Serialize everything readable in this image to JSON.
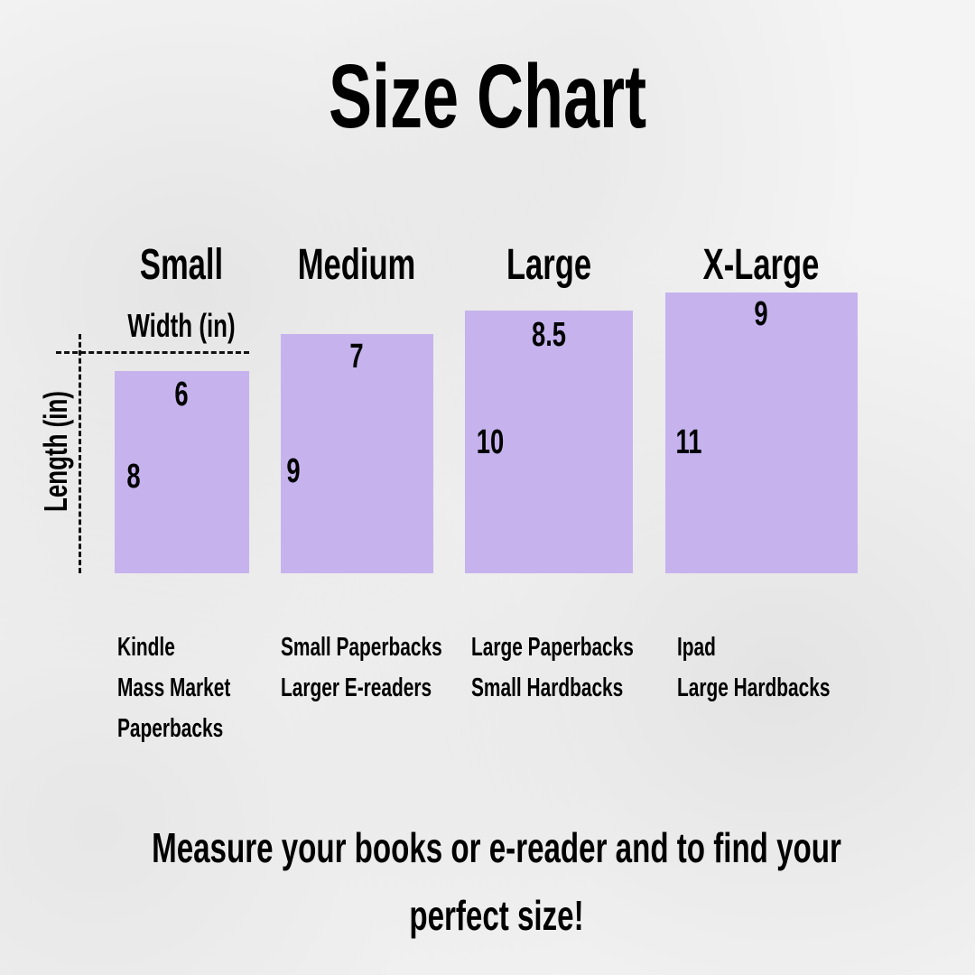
{
  "title": "Size Chart",
  "box_color": "#c6b3ed",
  "axis_labels": {
    "width": "Width (in)",
    "length": "Length (in)"
  },
  "sizes": [
    {
      "name": "Small",
      "width": "6",
      "length": "8",
      "examples": [
        "Kindle",
        "Mass Market",
        "Paperbacks"
      ]
    },
    {
      "name": "Medium",
      "width": "7",
      "length": "9",
      "examples": [
        "Small Paperbacks",
        "Larger E-readers"
      ]
    },
    {
      "name": "Large",
      "width": "8.5",
      "length": "10",
      "examples": [
        "Large Paperbacks",
        "Small Hardbacks"
      ]
    },
    {
      "name": "X-Large",
      "width": "9",
      "length": "11",
      "examples": [
        "Ipad",
        "Large Hardbacks"
      ]
    }
  ],
  "footer": {
    "line1": "Measure your books or e-reader and to find your",
    "line2": "perfect size!"
  }
}
